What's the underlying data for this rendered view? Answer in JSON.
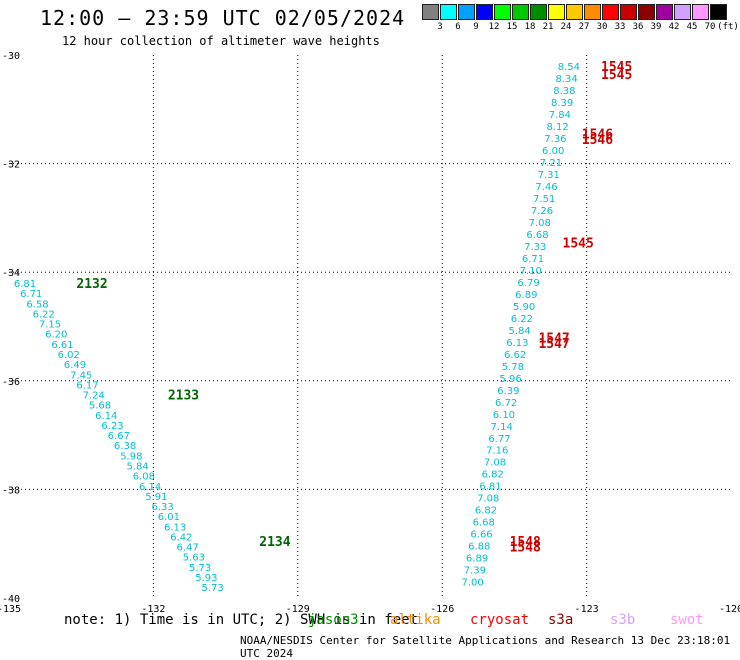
{
  "header": {
    "title": "12:00 – 23:59 UTC 02/05/2024",
    "subtitle": "12 hour collection of altimeter wave heights"
  },
  "legend": {
    "unit": "(ft)",
    "items": [
      {
        "label": "3",
        "color": "#808080"
      },
      {
        "label": "6",
        "color": "#00ffff"
      },
      {
        "label": "9",
        "color": "#00a0ff"
      },
      {
        "label": "12",
        "color": "#0000ff"
      },
      {
        "label": "15",
        "color": "#00ff00"
      },
      {
        "label": "18",
        "color": "#00c800"
      },
      {
        "label": "21",
        "color": "#008c00"
      },
      {
        "label": "24",
        "color": "#ffff00"
      },
      {
        "label": "27",
        "color": "#ffc800"
      },
      {
        "label": "30",
        "color": "#ff8c00"
      },
      {
        "label": "33",
        "color": "#ff0000"
      },
      {
        "label": "36",
        "color": "#c80000"
      },
      {
        "label": "39",
        "color": "#8c0000"
      },
      {
        "label": "42",
        "color": "#a000a0"
      },
      {
        "label": "45",
        "color": "#d2a0ff"
      },
      {
        "label": "70",
        "color": "#ff96ff"
      },
      {
        "label": "",
        "color": "#000000"
      }
    ]
  },
  "map": {
    "lon_range": [
      -135,
      -120
    ],
    "lat_range": [
      -40,
      -30
    ],
    "x_ticks": [
      "-135",
      "-132",
      "-129",
      "-126",
      "-123",
      "-120"
    ],
    "y_ticks": [
      "-30",
      "-32",
      "-34",
      "-36",
      "-38",
      "-40"
    ]
  },
  "tracks": [
    {
      "pass_color": "#00c0d0",
      "labels": [
        {
          "text": "2132",
          "lon": -133.6,
          "lat": -34.2,
          "color": "#006400"
        },
        {
          "text": "2133",
          "lon": -131.7,
          "lat": -36.25,
          "color": "#006400"
        },
        {
          "text": "2134",
          "lon": -129.8,
          "lat": -38.95,
          "color": "#006400"
        }
      ],
      "values": [
        "6.81",
        "6.71",
        "6.58",
        "6.22",
        "7.15",
        "6.20",
        "6.61",
        "6.02",
        "6.49",
        "7.45",
        "6.17",
        "7.24",
        "5.68",
        "6.14",
        "6.23",
        "6.67",
        "6.38",
        "5.98",
        "5.84",
        "6.08",
        "6.14",
        "5.91",
        "6.33",
        "6.01",
        "6.13",
        "6.42",
        "6.47",
        "5.63",
        "5.73",
        "5.93",
        "5.73"
      ],
      "start": [
        -134.9,
        -34.2
      ],
      "end": [
        -131.0,
        -39.8
      ]
    },
    {
      "pass_color": "#00c0d0",
      "labels": [
        {
          "text": "1545",
          "lon": -122.7,
          "lat": -30.2,
          "color": "#d00000"
        },
        {
          "text": "1545",
          "lon": -122.7,
          "lat": -30.35,
          "color": "#d00000"
        },
        {
          "text": "1546",
          "lon": -123.1,
          "lat": -31.45,
          "color": "#d00000"
        },
        {
          "text": "1546",
          "lon": -123.1,
          "lat": -31.55,
          "color": "#d00000"
        },
        {
          "text": "1545",
          "lon": -123.5,
          "lat": -33.45,
          "color": "#d00000"
        },
        {
          "text": "1547",
          "lon": -124.0,
          "lat": -35.2,
          "color": "#d00000"
        },
        {
          "text": "1547",
          "lon": -124.0,
          "lat": -35.3,
          "color": "#d00000"
        },
        {
          "text": "1548",
          "lon": -124.6,
          "lat": -38.95,
          "color": "#d00000"
        },
        {
          "text": "1548",
          "lon": -124.6,
          "lat": -39.05,
          "color": "#d00000"
        }
      ],
      "values": [
        "8.54",
        "8.34",
        "8.38",
        "8.39",
        "7.84",
        "8.12",
        "7.36",
        "6.00",
        "7.21",
        "7.31",
        "7.46",
        "7.51",
        "7.26",
        "7.08",
        "6.68",
        "7.33",
        "6.71",
        "7.10",
        "6.79",
        "6.89",
        "5.90",
        "6.22",
        "5.84",
        "6.13",
        "6.62",
        "5.78",
        "5.96",
        "6.39",
        "6.72",
        "6.10",
        "7.14",
        "6.77",
        "7.16",
        "7.08",
        "6.82",
        "6.81",
        "7.08",
        "6.82",
        "6.68",
        "6.66",
        "6.88",
        "6.89",
        "7.39",
        "7.00"
      ],
      "start": [
        -123.6,
        -30.2
      ],
      "end": [
        -125.6,
        -39.7
      ]
    }
  ],
  "note": "note: 1) Time is in UTC; 2) SWH is in feet",
  "satellites": [
    {
      "name": "jason3",
      "color": "#008c00"
    },
    {
      "name": "altika",
      "color": "#ff8c00"
    },
    {
      "name": "cryosat",
      "color": "#ff0000"
    },
    {
      "name": "s3a",
      "color": "#8c0000"
    },
    {
      "name": "s3b",
      "color": "#d2a0ff"
    },
    {
      "name": "swot",
      "color": "#ff96ff"
    }
  ],
  "footer": "NOAA/NESDIS Center for Satellite Applications and Research    13 Dec 23:18:01 UTC 2024"
}
